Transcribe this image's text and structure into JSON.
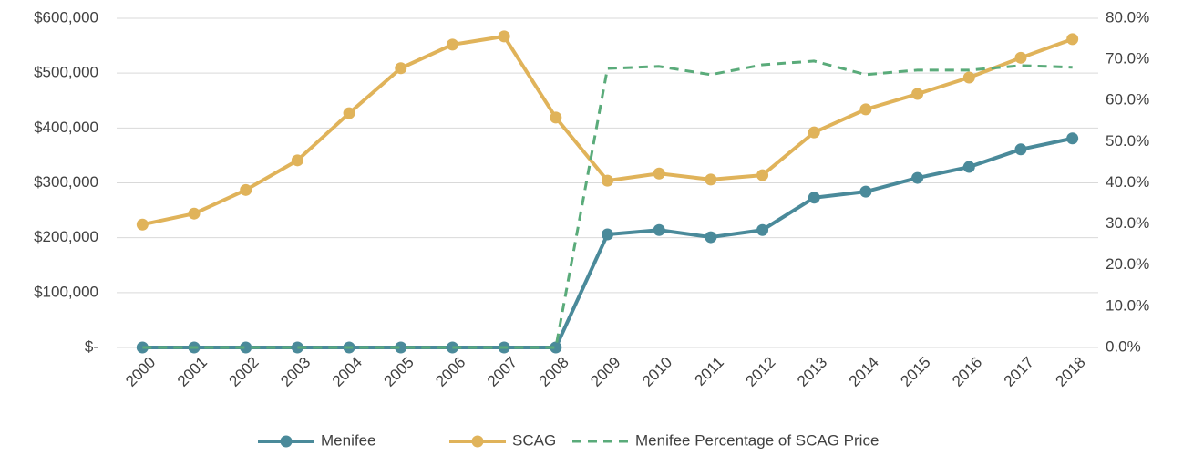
{
  "chart_data": {
    "type": "line",
    "categories": [
      "2000",
      "2001",
      "2002",
      "2003",
      "2004",
      "2005",
      "2006",
      "2007",
      "2008",
      "2009",
      "2010",
      "2011",
      "2012",
      "2013",
      "2014",
      "2015",
      "2016",
      "2017",
      "2018"
    ],
    "series": [
      {
        "name": "Menifee",
        "color": "#4a8a9a",
        "values": [
          0,
          0,
          0,
          0,
          0,
          0,
          0,
          0,
          0,
          206000,
          214000,
          201000,
          214000,
          273000,
          284000,
          309000,
          329000,
          361000,
          381000
        ]
      },
      {
        "name": "SCAG",
        "color": "#e0b35a",
        "values": [
          224000,
          244000,
          287000,
          341000,
          427000,
          509000,
          552000,
          567000,
          419000,
          304000,
          317000,
          306000,
          314000,
          392000,
          434000,
          462000,
          492000,
          528000,
          562000
        ]
      },
      {
        "name": "Menifee Percentage of SCAG Price",
        "color": "#5aab7a",
        "axis": "y2",
        "dashed": true,
        "markers": false,
        "values": [
          0,
          0,
          0,
          0,
          0,
          0,
          0,
          0,
          0,
          67.8,
          68.3,
          66.3,
          68.7,
          69.6,
          66.3,
          67.4,
          67.4,
          68.5,
          68.1
        ]
      }
    ],
    "ylim": [
      0,
      600000
    ],
    "yticks": [
      {
        "value": 0,
        "label": "$-"
      },
      {
        "value": 100000,
        "label": "$100,000"
      },
      {
        "value": 200000,
        "label": "$200,000"
      },
      {
        "value": 300000,
        "label": "$300,000"
      },
      {
        "value": 400000,
        "label": "$400,000"
      },
      {
        "value": 500000,
        "label": "$500,000"
      },
      {
        "value": 600000,
        "label": "$600,000"
      }
    ],
    "y2lim": [
      0,
      80
    ],
    "y2ticks": [
      {
        "value": 0,
        "label": "0.0%"
      },
      {
        "value": 10,
        "label": "10.0%"
      },
      {
        "value": 20,
        "label": "20.0%"
      },
      {
        "value": 30,
        "label": "30.0%"
      },
      {
        "value": 40,
        "label": "40.0%"
      },
      {
        "value": 50,
        "label": "50.0%"
      },
      {
        "value": 60,
        "label": "60.0%"
      },
      {
        "value": 70,
        "label": "70.0%"
      },
      {
        "value": 80,
        "label": "80.0%"
      }
    ],
    "grid": true,
    "legend": "bottom"
  }
}
